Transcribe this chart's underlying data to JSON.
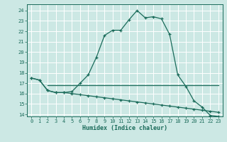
{
  "xlabel": "Humidex (Indice chaleur)",
  "bg_color": "#cce8e4",
  "line_color": "#1a6b5a",
  "grid_color": "#ffffff",
  "xlim": [
    -0.5,
    23.5
  ],
  "ylim": [
    13.8,
    24.6
  ],
  "yticks": [
    14,
    15,
    16,
    17,
    18,
    19,
    20,
    21,
    22,
    23,
    24
  ],
  "xticks": [
    0,
    1,
    2,
    3,
    4,
    5,
    6,
    7,
    8,
    9,
    10,
    11,
    12,
    13,
    14,
    15,
    16,
    17,
    18,
    19,
    20,
    21,
    22,
    23
  ],
  "line1_x": [
    0,
    1,
    2,
    3,
    4,
    5,
    6,
    7,
    8,
    9,
    10,
    11,
    12,
    13,
    14,
    15,
    16,
    17,
    18,
    19,
    20,
    21,
    22,
    23
  ],
  "line1_y": [
    17.5,
    17.3,
    16.3,
    16.1,
    16.1,
    16.2,
    17.0,
    17.8,
    19.5,
    21.6,
    22.1,
    22.1,
    23.1,
    24.0,
    23.3,
    23.4,
    23.2,
    21.7,
    17.8,
    16.7,
    15.3,
    14.7,
    13.9,
    13.8
  ],
  "line2_x": [
    2,
    3,
    4,
    5,
    6,
    7,
    8,
    9,
    10,
    11,
    12,
    13,
    14,
    15,
    16,
    17,
    18,
    19,
    20,
    21,
    22,
    23
  ],
  "line2_y": [
    16.8,
    16.8,
    16.8,
    16.8,
    16.8,
    16.8,
    16.8,
    16.8,
    16.8,
    16.8,
    16.8,
    16.8,
    16.8,
    16.8,
    16.8,
    16.8,
    16.8,
    16.8,
    16.8,
    16.8,
    16.8,
    16.8
  ],
  "line3_x": [
    0,
    1,
    2,
    3,
    4,
    5,
    6,
    7,
    8,
    9,
    10,
    11,
    12,
    13,
    14,
    15,
    16,
    17,
    18,
    19,
    20,
    21,
    22,
    23
  ],
  "line3_y": [
    17.5,
    17.3,
    16.3,
    16.1,
    16.1,
    16.0,
    15.9,
    15.8,
    15.7,
    15.6,
    15.5,
    15.4,
    15.3,
    15.2,
    15.1,
    15.0,
    14.9,
    14.8,
    14.7,
    14.6,
    14.5,
    14.4,
    14.3,
    14.2
  ]
}
